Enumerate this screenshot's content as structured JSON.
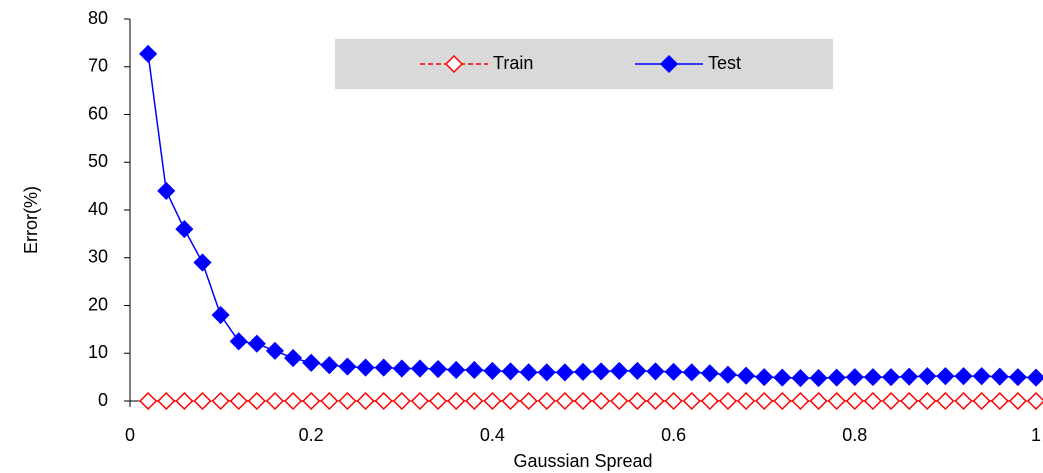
{
  "chart_data": {
    "type": "line",
    "x_label": "Gaussian Spread",
    "y_label": "Error(%)",
    "x": [
      0.02,
      0.04,
      0.06,
      0.08,
      0.1,
      0.12,
      0.14,
      0.16,
      0.18,
      0.2,
      0.22,
      0.24,
      0.26,
      0.28,
      0.3,
      0.32,
      0.34,
      0.36,
      0.38,
      0.4,
      0.42,
      0.44,
      0.46,
      0.48,
      0.5,
      0.52,
      0.54,
      0.56,
      0.58,
      0.6,
      0.62,
      0.64,
      0.66,
      0.68,
      0.7,
      0.72,
      0.74,
      0.76,
      0.78,
      0.8,
      0.82,
      0.84,
      0.86,
      0.88,
      0.9,
      0.92,
      0.94,
      0.96,
      0.98,
      1
    ],
    "series": [
      {
        "name": "Train",
        "color": "#ff0000",
        "linestyle": "dashed",
        "marker": "diamond",
        "filled": false,
        "values": [
          0,
          0,
          0,
          0,
          0,
          0,
          0,
          0,
          0,
          0,
          0,
          0,
          0,
          0,
          0,
          0,
          0,
          0,
          0,
          0,
          0,
          0,
          0,
          0,
          0,
          0,
          0,
          0,
          0,
          0,
          0,
          0,
          0,
          0,
          0,
          0,
          0,
          0,
          0,
          0,
          0,
          0,
          0,
          0,
          0,
          0,
          0,
          0,
          0,
          0
        ]
      },
      {
        "name": "Test",
        "color": "#0000ff",
        "linestyle": "solid",
        "marker": "diamond",
        "filled": true,
        "values": [
          72.7,
          44,
          36,
          29,
          18,
          12.5,
          12,
          10.5,
          9,
          8,
          7.5,
          7.2,
          7,
          7,
          6.8,
          6.8,
          6.7,
          6.5,
          6.5,
          6.3,
          6.2,
          6,
          6,
          6,
          6.1,
          6.2,
          6.3,
          6.3,
          6.2,
          6.1,
          6,
          5.8,
          5.5,
          5.3,
          5,
          4.9,
          4.8,
          4.8,
          4.9,
          5,
          5,
          5,
          5.1,
          5.2,
          5.2,
          5.2,
          5.2,
          5.1,
          5,
          4.9
        ]
      }
    ],
    "xlim": [
      0,
      1
    ],
    "xticks": [
      0,
      0.2,
      0.4,
      0.6,
      0.8,
      1
    ],
    "ylim": [
      0,
      80
    ],
    "yticks": [
      0,
      10,
      20,
      30,
      40,
      50,
      60,
      70,
      80
    ],
    "legend": "top",
    "legend_background": "#d9d9d9"
  }
}
